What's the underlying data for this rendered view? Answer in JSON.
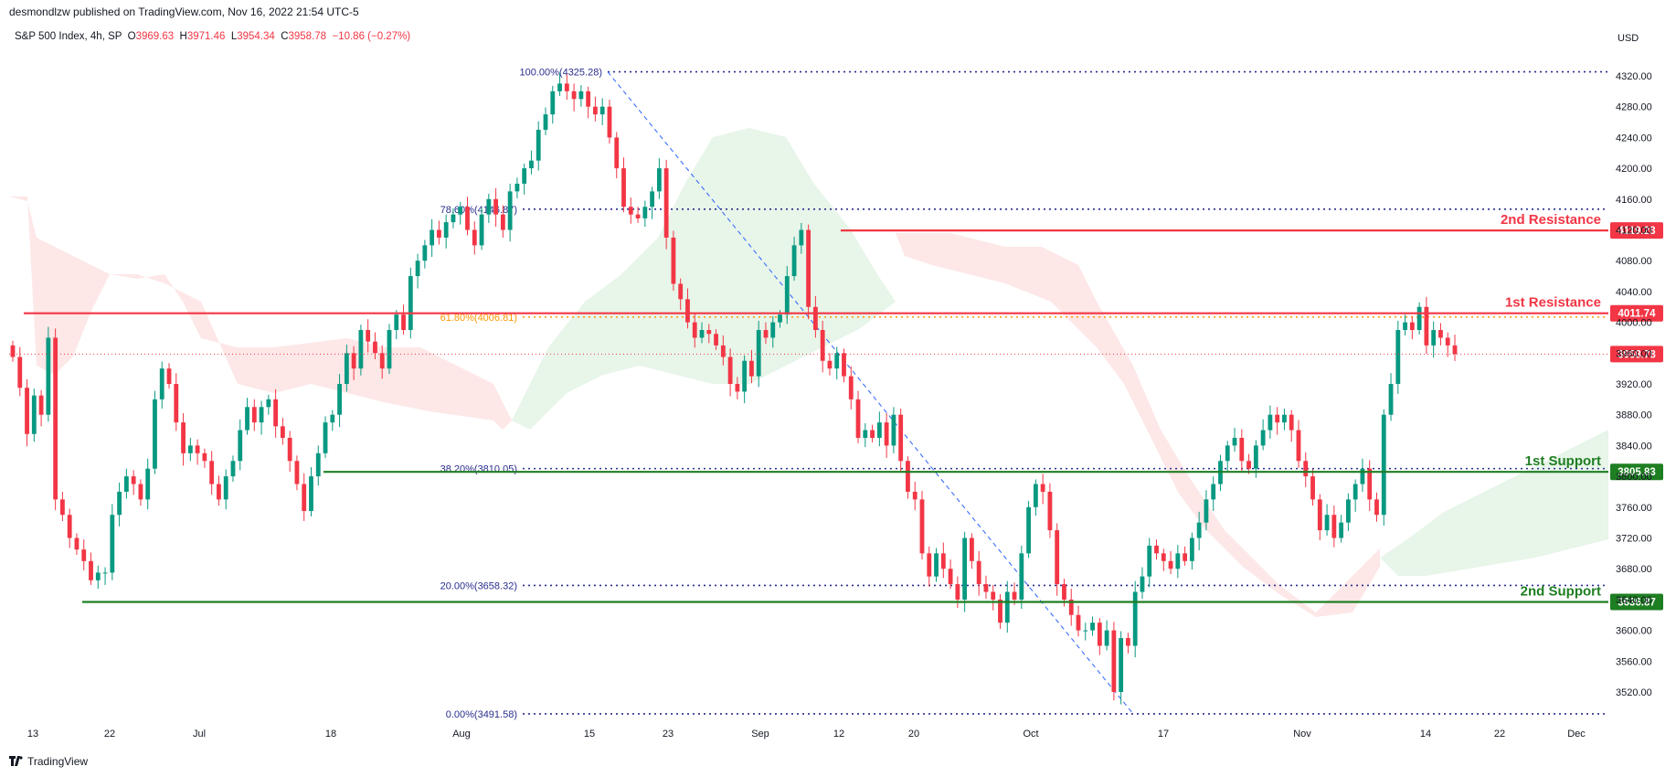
{
  "header": {
    "published": "desmondlzw published on TradingView.com, Nov 16, 2022 21:54 UTC-5"
  },
  "symbol": {
    "name": "S&P 500 Index, 4h, SP",
    "o_label": "O",
    "o": "3969.63",
    "h_label": "H",
    "h": "3971.46",
    "l_label": "L",
    "l": "3954.34",
    "c_label": "C",
    "c": "3958.78",
    "change": "−10.86 (−0.27%)"
  },
  "currency": "USD",
  "footer": {
    "brand": "TradingView"
  },
  "colors": {
    "up": "#089981",
    "down": "#f23645",
    "resistance": "#f23645",
    "support": "#1e7e22",
    "fib": "#2a2e8c",
    "fib_mid": "#ff9800",
    "cloud_green": "#e8f5e9",
    "cloud_red": "#fde7e7"
  },
  "chart_data": {
    "type": "candlestick",
    "y_ticks": [
      "4320.00",
      "4280.00",
      "4240.00",
      "4200.00",
      "4160.00",
      "4120.00",
      "4080.00",
      "4040.00",
      "4000.00",
      "3960.00",
      "3920.00",
      "3880.00",
      "3840.00",
      "3800.00",
      "3760.00",
      "3720.00",
      "3680.00",
      "3640.00",
      "3600.00",
      "3560.00",
      "3520.00"
    ],
    "ylim": [
      3491.58,
      4325.28
    ],
    "x_ticks": [
      "13",
      "22",
      "Jul",
      "18",
      "Aug",
      "15",
      "23",
      "Sep",
      "12",
      "20",
      "Oct",
      "17",
      "Nov",
      "14",
      "22",
      "Dec"
    ],
    "fib_levels": [
      {
        "label": "100.00%(4325.28)",
        "value": 4325.28
      },
      {
        "label": "78.60%(4146.87)",
        "value": 4146.87
      },
      {
        "label": "61.80%(4006.81)",
        "value": 4006.81
      },
      {
        "label": "38.20%(3810.05)",
        "value": 3810.05
      },
      {
        "label": "20.00%(3658.32)",
        "value": 3658.32
      },
      {
        "label": "0.00%(3491.58)",
        "value": 3491.58
      }
    ],
    "levels": [
      {
        "name": "2nd Resistance",
        "value": 4119.28,
        "tag": "4119.28",
        "kind": "resistance"
      },
      {
        "name": "1st Resistance",
        "value": 4011.74,
        "tag": "4011.74",
        "kind": "resistance"
      },
      {
        "name": "1st Support",
        "value": 3805.83,
        "tag": "3805.83",
        "kind": "support"
      },
      {
        "name": "2nd Support",
        "value": 3636.87,
        "tag": "3636.87",
        "kind": "support"
      }
    ],
    "last_price": {
      "value": 3958.78,
      "tag": "3958.78"
    },
    "candles": [
      3955,
      3915,
      3855,
      3905,
      3880,
      3980,
      3770,
      3750,
      3720,
      3705,
      3690,
      3665,
      3675,
      3675,
      3750,
      3780,
      3800,
      3790,
      3770,
      3810,
      3900,
      3940,
      3920,
      3870,
      3830,
      3840,
      3830,
      3820,
      3790,
      3770,
      3800,
      3820,
      3860,
      3890,
      3870,
      3890,
      3900,
      3865,
      3850,
      3820,
      3790,
      3755,
      3800,
      3830,
      3870,
      3880,
      3920,
      3960,
      3940,
      3990,
      3975,
      3960,
      3940,
      3990,
      4010,
      3990,
      4060,
      4080,
      4100,
      4120,
      4110,
      4130,
      4140,
      4150,
      4120,
      4100,
      4140,
      4160,
      4140,
      4120,
      4170,
      4180,
      4200,
      4210,
      4250,
      4270,
      4300,
      4310,
      4300,
      4290,
      4300,
      4280,
      4270,
      4280,
      4240,
      4200,
      4150,
      4140,
      4135,
      4150,
      4170,
      4200,
      4110,
      4050,
      4030,
      4000,
      3980,
      3990,
      3985,
      3970,
      3955,
      3920,
      3910,
      3950,
      3930,
      3990,
      3980,
      4000,
      4010,
      4060,
      4100,
      4120,
      4020,
      3990,
      3950,
      3940,
      3960,
      3930,
      3900,
      3850,
      3860,
      3850,
      3870,
      3840,
      3880,
      3820,
      3780,
      3770,
      3700,
      3670,
      3700,
      3680,
      3660,
      3640,
      3720,
      3690,
      3660,
      3650,
      3640,
      3610,
      3650,
      3640,
      3700,
      3760,
      3790,
      3780,
      3730,
      3660,
      3640,
      3620,
      3600,
      3600,
      3610,
      3580,
      3600,
      3520,
      3590,
      3580,
      3650,
      3670,
      3710,
      3700,
      3690,
      3680,
      3700,
      3690,
      3720,
      3740,
      3770,
      3790,
      3820,
      3840,
      3850,
      3820,
      3810,
      3840,
      3860,
      3880,
      3870,
      3880,
      3860,
      3820,
      3800,
      3770,
      3730,
      3750,
      3720,
      3740,
      3770,
      3790,
      3810,
      3770,
      3750,
      3880,
      3920,
      3990,
      4000,
      3990,
      4020,
      3970,
      3990,
      3980,
      3970,
      3958.78
    ]
  }
}
